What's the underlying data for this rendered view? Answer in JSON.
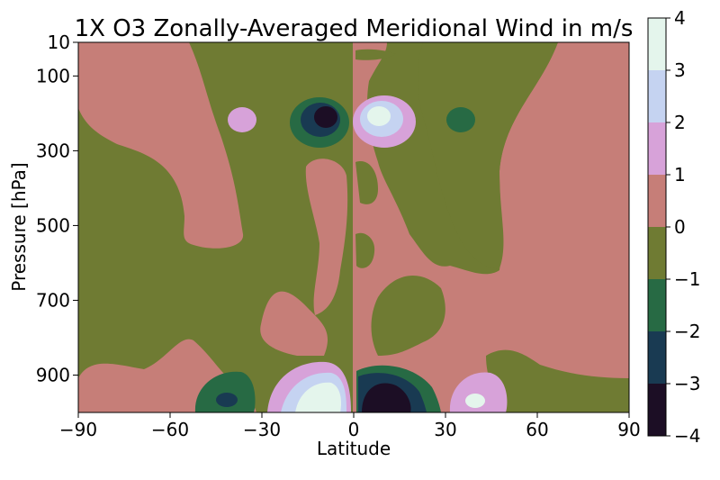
{
  "chart_data": {
    "type": "contourf",
    "title": "1X O3 Zonally-Averaged Meridional Wind in m/s",
    "xlabel": "Latitude",
    "ylabel": "Pressure [hPa]",
    "x_ticks": [
      "−90",
      "−60",
      "−30",
      "0",
      "30",
      "60",
      "90"
    ],
    "x_tick_values": [
      -90,
      -60,
      -30,
      0,
      30,
      60,
      90
    ],
    "xlim": [
      -90,
      90
    ],
    "y_ticks": [
      "10",
      "100",
      "300",
      "500",
      "700",
      "900"
    ],
    "y_tick_values": [
      10,
      100,
      300,
      500,
      700,
      900
    ],
    "ylim": [
      1000,
      10
    ],
    "y_axis_inverted": true,
    "colorbar": {
      "label_values": [
        4,
        3,
        2,
        1,
        0,
        -1,
        -2,
        -3,
        -4
      ],
      "labels": [
        "4",
        "3",
        "2",
        "1",
        "0",
        "−1",
        "−2",
        "−3",
        "−4"
      ],
      "levels": [
        {
          "range": [
            3,
            4
          ],
          "color": "#e4f5ec"
        },
        {
          "range": [
            2,
            3
          ],
          "color": "#c5d3f1"
        },
        {
          "range": [
            1,
            2
          ],
          "color": "#d7a2d9"
        },
        {
          "range": [
            0,
            1
          ],
          "color": "#c67e78"
        },
        {
          "range": [
            -1,
            0
          ],
          "color": "#6f7b33"
        },
        {
          "range": [
            -2,
            -1
          ],
          "color": "#276a44"
        },
        {
          "range": [
            -3,
            -2
          ],
          "color": "#193a52"
        },
        {
          "range": [
            -4,
            -3
          ],
          "color": "#1c0e25"
        }
      ]
    },
    "features": [
      {
        "lat": -12,
        "p": 200,
        "value": -3.5,
        "note": "strong negative core"
      },
      {
        "lat": 10,
        "p": 200,
        "value": 3.5,
        "note": "strong positive core"
      },
      {
        "lat": -42,
        "p": 220,
        "value": 1.5
      },
      {
        "lat": 40,
        "p": 210,
        "value": -1.5
      },
      {
        "lat": -12,
        "p": 960,
        "value": 3.5,
        "note": "near-surface positive core"
      },
      {
        "lat": 12,
        "p": 960,
        "value": -3.5,
        "note": "near-surface negative core"
      },
      {
        "lat": -42,
        "p": 960,
        "value": -2.5
      },
      {
        "lat": 42,
        "p": 960,
        "value": 2.5
      }
    ]
  }
}
